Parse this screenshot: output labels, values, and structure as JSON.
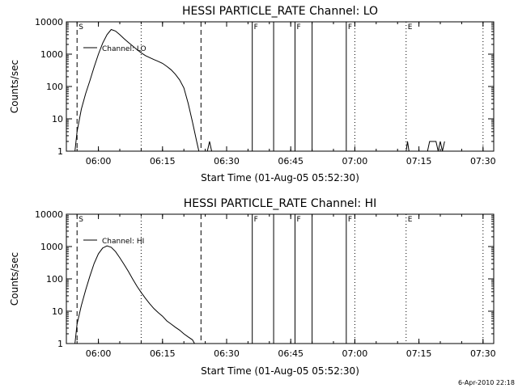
{
  "footer_timestamp": "6-Apr-2010 22:18",
  "chart_data": [
    {
      "type": "line",
      "title": "HESSI PARTICLE_RATE Channel: LO",
      "xlabel": "Start Time (01-Aug-05 05:52:30)",
      "ylabel": "Counts/sec",
      "yscale": "log",
      "ylim": [
        1,
        10000
      ],
      "xlim_minutes": [
        "05:52:30",
        "07:32:30"
      ],
      "x_ticks": [
        "06:00",
        "06:15",
        "06:30",
        "06:45",
        "07:00",
        "07:15",
        "07:30"
      ],
      "y_ticks": [
        "1",
        "10",
        "100",
        "1000",
        "10000"
      ],
      "legend": "Channel: LO",
      "legend_placement": "upper-left",
      "markers": [
        {
          "time": "05:55",
          "style": "dashed",
          "label": "S"
        },
        {
          "time": "06:10",
          "style": "dotted",
          "label": ""
        },
        {
          "time": "06:24",
          "style": "dashed",
          "label": ""
        },
        {
          "time": "06:36",
          "style": "solid",
          "label": "F"
        },
        {
          "time": "06:41",
          "style": "solid",
          "label": ""
        },
        {
          "time": "06:46",
          "style": "solid",
          "label": "F"
        },
        {
          "time": "06:50",
          "style": "solid",
          "label": ""
        },
        {
          "time": "06:58",
          "style": "solid",
          "label": "F"
        },
        {
          "time": "07:00",
          "style": "dotted",
          "label": ""
        },
        {
          "time": "07:12",
          "style": "dotted",
          "label": "E"
        },
        {
          "time": "07:30",
          "style": "dotted",
          "label": ""
        }
      ],
      "series": [
        {
          "x": [
            "05:54:30",
            "05:55:00",
            "05:56:00",
            "05:57:00",
            "05:58:00",
            "05:59:00",
            "06:00:00",
            "06:01:00",
            "06:02:00",
            "06:03:00",
            "06:04:00",
            "06:05:00",
            "06:06:00",
            "06:07:00",
            "06:08:00",
            "06:09:00",
            "06:10:00",
            "06:11:00",
            "06:12:00",
            "06:13:00",
            "06:14:00",
            "06:15:00",
            "06:16:00",
            "06:17:00",
            "06:18:00",
            "06:19:00",
            "06:20:00",
            "06:21:00",
            "06:22:00",
            "06:23:00",
            "06:23:30"
          ],
          "values": [
            1,
            4,
            20,
            60,
            150,
            400,
            1000,
            2200,
            4000,
            5800,
            5200,
            4000,
            3000,
            2300,
            1800,
            1400,
            1100,
            900,
            780,
            680,
            600,
            520,
            420,
            330,
            240,
            160,
            90,
            30,
            8,
            2,
            1
          ]
        },
        {
          "x": [
            "06:25:30",
            "06:26:00",
            "06:26:30"
          ],
          "values": [
            1,
            2,
            1
          ]
        },
        {
          "x": [
            "07:12:00",
            "07:12:20",
            "07:12:40"
          ],
          "values": [
            1,
            2,
            1
          ]
        },
        {
          "x": [
            "07:17:00",
            "07:17:30",
            "07:19:00",
            "07:19:30",
            "07:20:00",
            "07:20:30",
            "07:21:00"
          ],
          "values": [
            1,
            2,
            2,
            1,
            2,
            1,
            2
          ]
        }
      ]
    },
    {
      "type": "line",
      "title": "HESSI PARTICLE_RATE Channel: HI",
      "xlabel": "Start Time (01-Aug-05 05:52:30)",
      "ylabel": "Counts/sec",
      "yscale": "log",
      "ylim": [
        1,
        10000
      ],
      "xlim_minutes": [
        "05:52:30",
        "07:32:30"
      ],
      "x_ticks": [
        "06:00",
        "06:15",
        "06:30",
        "06:45",
        "07:00",
        "07:15",
        "07:30"
      ],
      "y_ticks": [
        "1",
        "10",
        "100",
        "1000",
        "10000"
      ],
      "legend": "Channel: HI",
      "legend_placement": "upper-left",
      "markers": [
        {
          "time": "05:55",
          "style": "dashed",
          "label": "S"
        },
        {
          "time": "06:10",
          "style": "dotted",
          "label": ""
        },
        {
          "time": "06:24",
          "style": "dashed",
          "label": ""
        },
        {
          "time": "06:36",
          "style": "solid",
          "label": "F"
        },
        {
          "time": "06:41",
          "style": "solid",
          "label": ""
        },
        {
          "time": "06:46",
          "style": "solid",
          "label": "F"
        },
        {
          "time": "06:50",
          "style": "solid",
          "label": ""
        },
        {
          "time": "06:58",
          "style": "solid",
          "label": "F"
        },
        {
          "time": "07:00",
          "style": "dotted",
          "label": ""
        },
        {
          "time": "07:12",
          "style": "dotted",
          "label": "E"
        },
        {
          "time": "07:30",
          "style": "dotted",
          "label": ""
        }
      ],
      "series": [
        {
          "x": [
            "05:54:30",
            "05:55:00",
            "05:56:00",
            "05:57:00",
            "05:58:00",
            "05:59:00",
            "06:00:00",
            "06:01:00",
            "06:02:00",
            "06:03:00",
            "06:04:00",
            "06:05:00",
            "06:06:00",
            "06:07:00",
            "06:08:00",
            "06:09:00",
            "06:10:00",
            "06:11:00",
            "06:12:00",
            "06:13:00",
            "06:14:00",
            "06:15:00",
            "06:16:00",
            "06:17:00",
            "06:18:00",
            "06:19:00",
            "06:20:00",
            "06:21:00",
            "06:22:00",
            "06:22:30"
          ],
          "values": [
            1,
            4,
            15,
            45,
            120,
            300,
            600,
            900,
            1050,
            950,
            700,
            450,
            280,
            170,
            100,
            60,
            38,
            25,
            17,
            12,
            9,
            7,
            5,
            4,
            3.2,
            2.6,
            2,
            1.6,
            1.3,
            1
          ]
        }
      ]
    }
  ]
}
